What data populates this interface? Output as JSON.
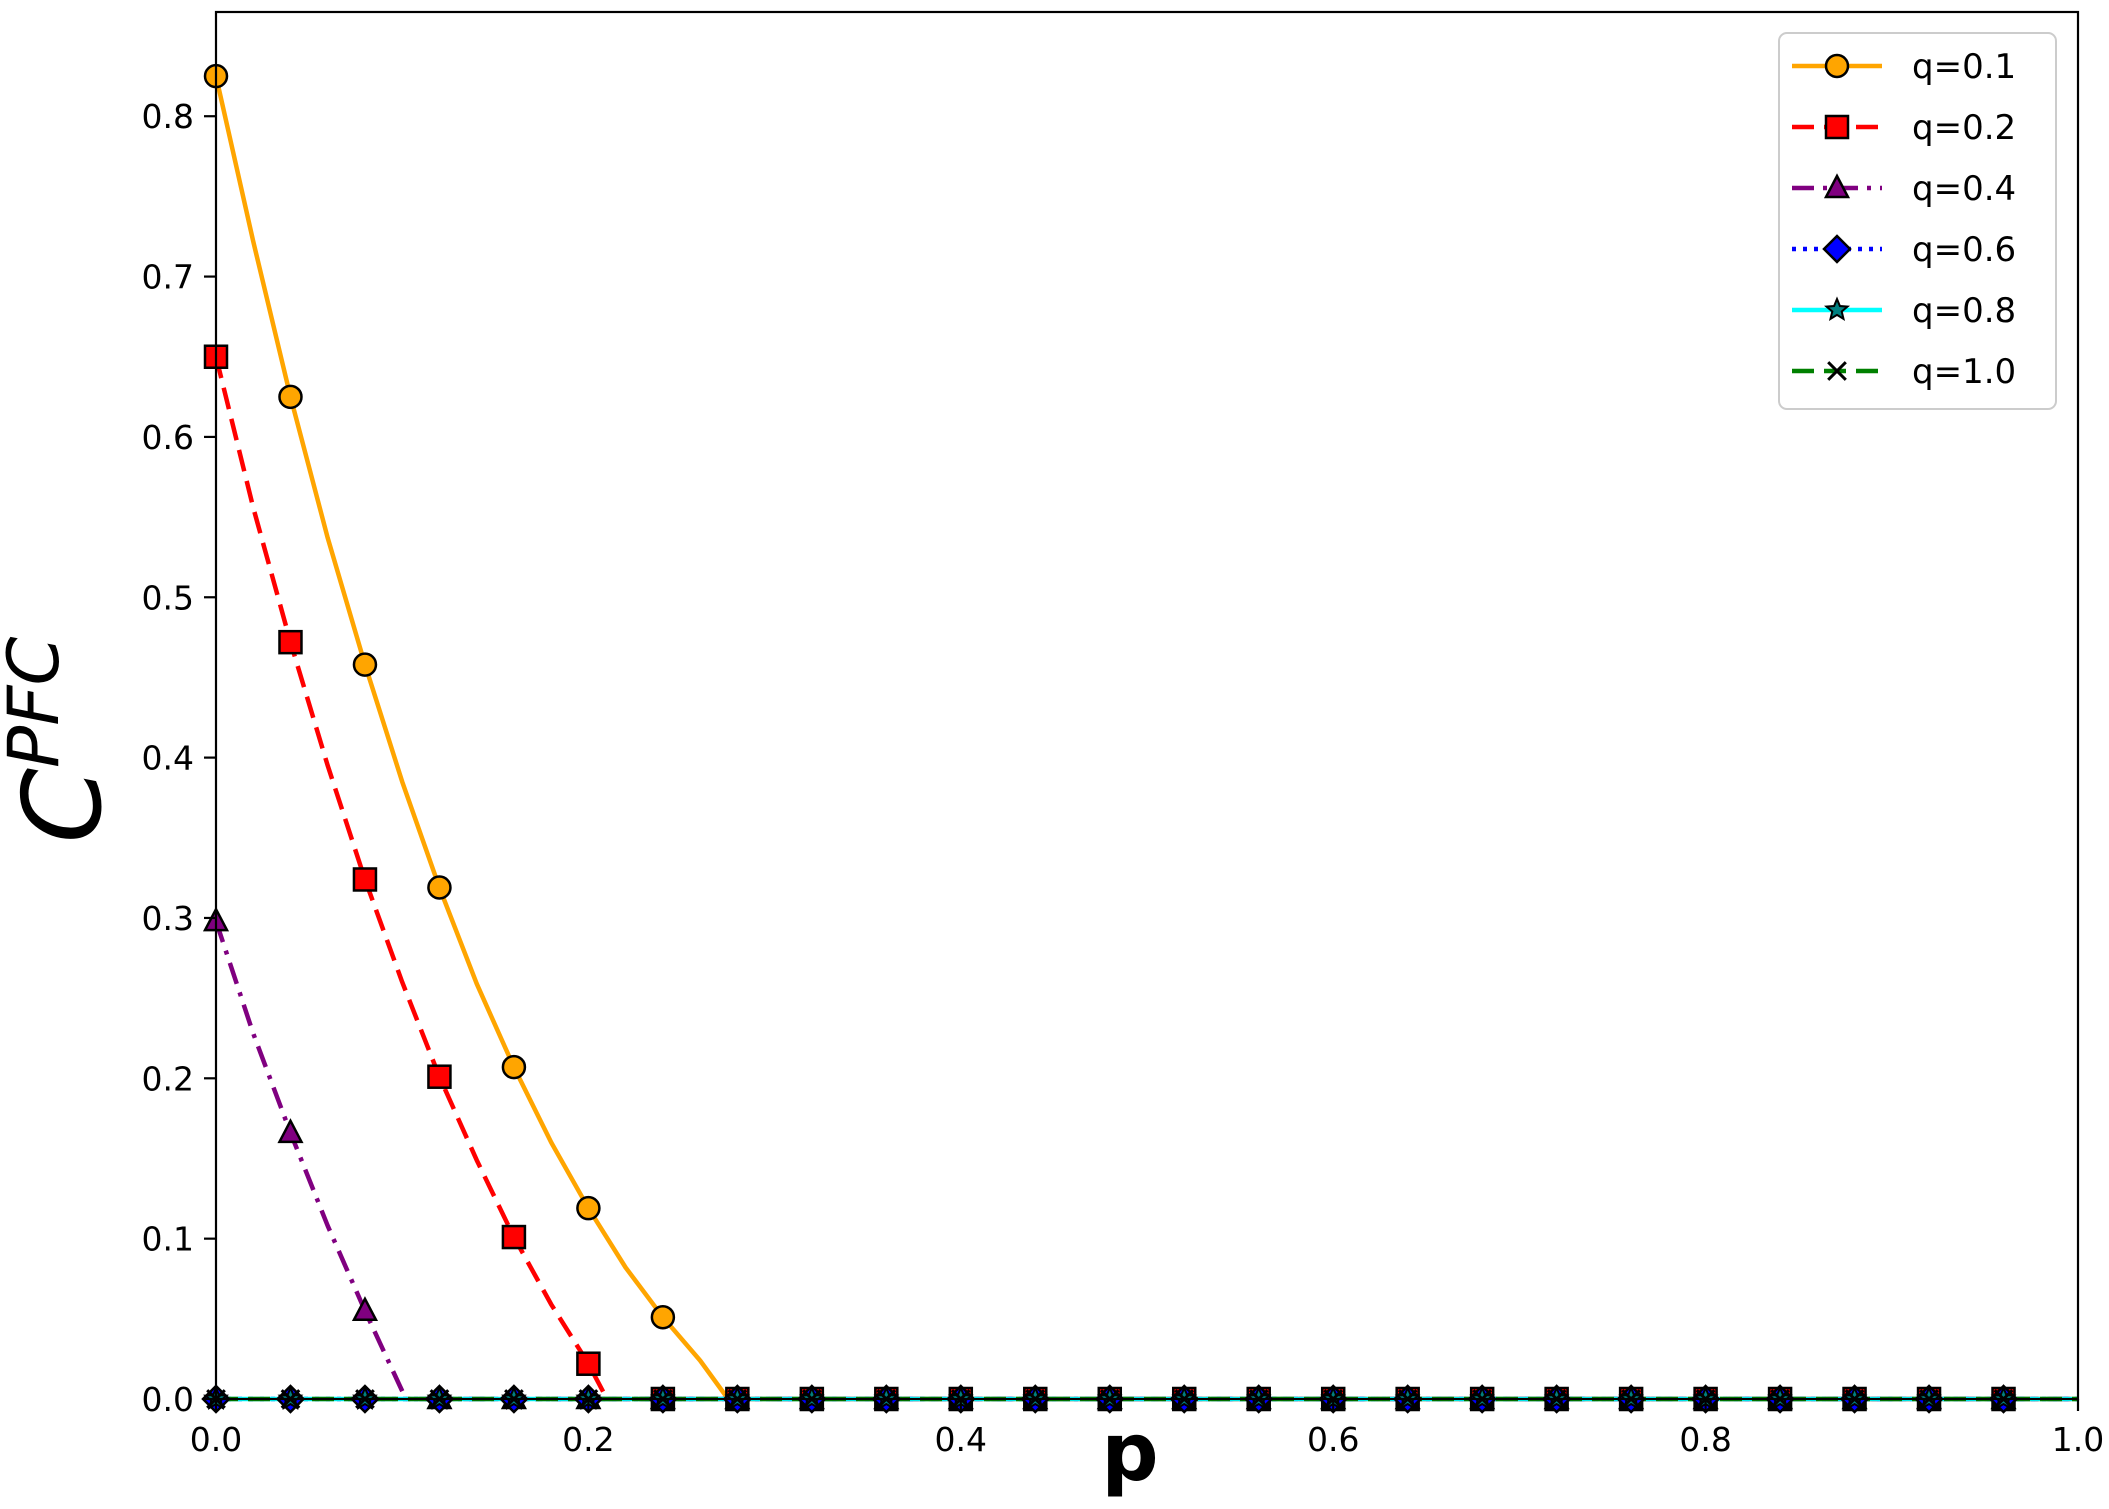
{
  "chart_data": {
    "type": "line",
    "title": "",
    "xlabel": "p",
    "ylabel_base": "C",
    "ylabel_sup": "PFC",
    "xlim": [
      0.0,
      1.0
    ],
    "ylim": [
      0.0,
      0.865
    ],
    "xticks": [
      0.0,
      0.2,
      0.4,
      0.6,
      0.8,
      1.0
    ],
    "xtick_labels": [
      "0.0",
      "0.2",
      "0.4",
      "0.6",
      "0.8",
      "1.0"
    ],
    "yticks": [
      0.0,
      0.1,
      0.2,
      0.3,
      0.4,
      0.5,
      0.6,
      0.7,
      0.8
    ],
    "ytick_labels": [
      "0.0",
      "0.1",
      "0.2",
      "0.3",
      "0.4",
      "0.5",
      "0.6",
      "0.7",
      "0.8"
    ],
    "grid": false,
    "legend_position": "top-right",
    "marker_x": [
      0.0,
      0.04,
      0.08,
      0.12,
      0.16,
      0.2,
      0.24,
      0.28,
      0.32,
      0.36,
      0.4,
      0.44,
      0.48,
      0.52,
      0.56,
      0.6,
      0.64,
      0.68,
      0.72,
      0.76,
      0.8,
      0.84,
      0.88,
      0.92,
      0.96
    ],
    "series": [
      {
        "name": "q=0.1",
        "color": "#ffa500",
        "linestyle": "solid",
        "marker": "circle",
        "marker_fill": "#ffa500",
        "curve": [
          [
            0.0,
            0.825
          ],
          [
            0.02,
            0.722
          ],
          [
            0.04,
            0.625
          ],
          [
            0.06,
            0.537
          ],
          [
            0.08,
            0.458
          ],
          [
            0.1,
            0.385
          ],
          [
            0.12,
            0.319
          ],
          [
            0.14,
            0.259
          ],
          [
            0.16,
            0.207
          ],
          [
            0.18,
            0.16
          ],
          [
            0.2,
            0.119
          ],
          [
            0.22,
            0.082
          ],
          [
            0.24,
            0.051
          ],
          [
            0.26,
            0.024
          ],
          [
            0.275,
            0.0
          ],
          [
            1.0,
            0.0
          ]
        ],
        "points": [
          0.825,
          0.625,
          0.458,
          0.319,
          0.207,
          0.119,
          0.051,
          0.0,
          0.0,
          0.0,
          0.0,
          0.0,
          0.0,
          0.0,
          0.0,
          0.0,
          0.0,
          0.0,
          0.0,
          0.0,
          0.0,
          0.0,
          0.0,
          0.0,
          0.0
        ]
      },
      {
        "name": "q=0.2",
        "color": "#ff0000",
        "linestyle": "dashed",
        "marker": "square",
        "marker_fill": "#ff0000",
        "curve": [
          [
            0.0,
            0.65
          ],
          [
            0.02,
            0.556
          ],
          [
            0.04,
            0.472
          ],
          [
            0.06,
            0.395
          ],
          [
            0.08,
            0.324
          ],
          [
            0.1,
            0.26
          ],
          [
            0.12,
            0.201
          ],
          [
            0.14,
            0.149
          ],
          [
            0.16,
            0.101
          ],
          [
            0.18,
            0.059
          ],
          [
            0.2,
            0.022
          ],
          [
            0.21,
            0.0
          ],
          [
            1.0,
            0.0
          ]
        ],
        "points": [
          0.65,
          0.472,
          0.324,
          0.201,
          0.101,
          0.022,
          0.0,
          0.0,
          0.0,
          0.0,
          0.0,
          0.0,
          0.0,
          0.0,
          0.0,
          0.0,
          0.0,
          0.0,
          0.0,
          0.0,
          0.0,
          0.0,
          0.0,
          0.0,
          0.0
        ]
      },
      {
        "name": "q=0.4",
        "color": "#800080",
        "linestyle": "dashdot",
        "marker": "triangle",
        "marker_fill": "#800080",
        "curve": [
          [
            0.0,
            0.298
          ],
          [
            0.02,
            0.228
          ],
          [
            0.04,
            0.166
          ],
          [
            0.06,
            0.108
          ],
          [
            0.08,
            0.055
          ],
          [
            0.1,
            0.005
          ],
          [
            0.102,
            0.0
          ],
          [
            1.0,
            0.0
          ]
        ],
        "points": [
          0.298,
          0.166,
          0.055,
          0.0,
          0.0,
          0.0,
          0.0,
          0.0,
          0.0,
          0.0,
          0.0,
          0.0,
          0.0,
          0.0,
          0.0,
          0.0,
          0.0,
          0.0,
          0.0,
          0.0,
          0.0,
          0.0,
          0.0,
          0.0,
          0.0
        ]
      },
      {
        "name": "q=0.6",
        "color": "#0000ff",
        "linestyle": "dotted",
        "marker": "diamond",
        "marker_fill": "#0000ff",
        "curve": [
          [
            0.0,
            0.0
          ],
          [
            1.0,
            0.0
          ]
        ],
        "points": [
          0.0,
          0.0,
          0.0,
          0.0,
          0.0,
          0.0,
          0.0,
          0.0,
          0.0,
          0.0,
          0.0,
          0.0,
          0.0,
          0.0,
          0.0,
          0.0,
          0.0,
          0.0,
          0.0,
          0.0,
          0.0,
          0.0,
          0.0,
          0.0,
          0.0
        ]
      },
      {
        "name": "q=0.8",
        "color": "#00ffff",
        "linestyle": "solid",
        "marker": "star",
        "marker_fill": "#008080",
        "curve": [
          [
            0.0,
            0.0
          ],
          [
            1.0,
            0.0
          ]
        ],
        "points": [
          0.0,
          0.0,
          0.0,
          0.0,
          0.0,
          0.0,
          0.0,
          0.0,
          0.0,
          0.0,
          0.0,
          0.0,
          0.0,
          0.0,
          0.0,
          0.0,
          0.0,
          0.0,
          0.0,
          0.0,
          0.0,
          0.0,
          0.0,
          0.0,
          0.0
        ]
      },
      {
        "name": "q=1.0",
        "color": "#008000",
        "linestyle": "dashed",
        "marker": "x",
        "marker_fill": "#000000",
        "curve": [
          [
            0.0,
            0.0
          ],
          [
            1.0,
            0.0
          ]
        ],
        "points": [
          0.0,
          0.0,
          0.0,
          0.0,
          0.0,
          0.0,
          0.0,
          0.0,
          0.0,
          0.0,
          0.0,
          0.0,
          0.0,
          0.0,
          0.0,
          0.0,
          0.0,
          0.0,
          0.0,
          0.0,
          0.0,
          0.0,
          0.0,
          0.0,
          0.0
        ]
      }
    ]
  }
}
